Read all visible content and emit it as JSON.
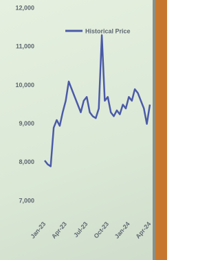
{
  "chart_data": {
    "type": "line",
    "categories": [
      "Jan-23",
      null,
      null,
      null,
      null,
      null,
      null,
      "Apr-23",
      null,
      null,
      null,
      null,
      null,
      null,
      "Jul-23",
      null,
      null,
      null,
      null,
      null,
      null,
      "Oct-23",
      null,
      null,
      null,
      null,
      null,
      null,
      "Jan-24",
      null,
      null,
      null,
      null,
      null,
      null,
      "Apr-24"
    ],
    "series": [
      {
        "name": "Historical Price",
        "color": "#4a5aa8",
        "values": [
          8050,
          7950,
          7900,
          8900,
          9100,
          8950,
          9300,
          9600,
          10100,
          9900,
          9700,
          9500,
          9300,
          9600,
          9700,
          9300,
          9200,
          9150,
          9400,
          11300,
          9600,
          9700,
          9300,
          9200,
          9350,
          9250,
          9500,
          9400,
          9700,
          9600,
          9900,
          9800,
          9600,
          9400,
          9000,
          9500
        ]
      }
    ],
    "ylim": [
      7000,
      12000
    ],
    "yticks": [
      {
        "value": 7000,
        "label": "7,000"
      },
      {
        "value": 8000,
        "label": "8,000"
      },
      {
        "value": 9000,
        "label": "9,000"
      },
      {
        "value": 10000,
        "label": "10,000"
      },
      {
        "value": 11000,
        "label": "11,000"
      },
      {
        "value": 12000,
        "label": "12,000"
      }
    ],
    "grid": false
  }
}
